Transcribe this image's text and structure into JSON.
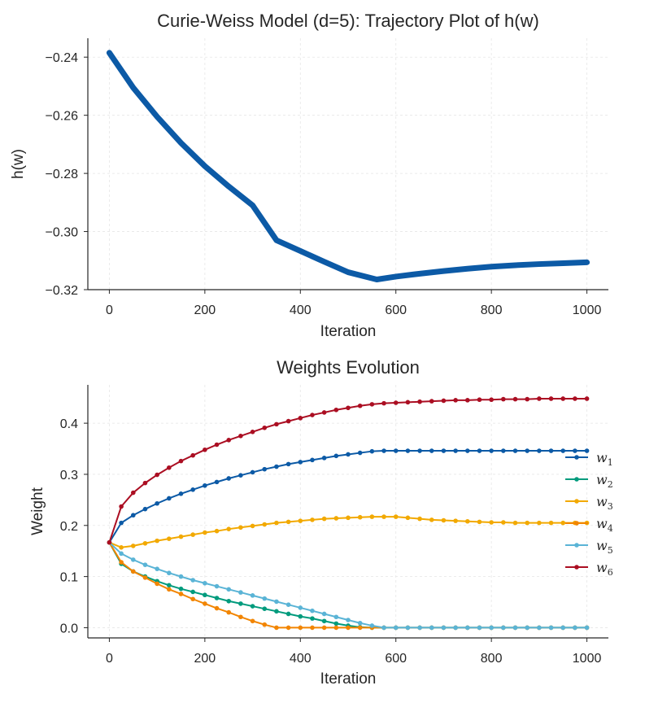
{
  "chart_data": [
    {
      "type": "line",
      "title": "Curie-Weiss Model (d=5): Trajectory Plot of h(w)",
      "xlabel": "Iteration",
      "ylabel": "h(w)",
      "xlim": [
        -45,
        1045
      ],
      "ylim": [
        -0.32,
        -0.2335
      ],
      "xticks": [
        0,
        200,
        400,
        600,
        800,
        1000
      ],
      "yticks": [
        -0.24,
        -0.26,
        -0.28,
        -0.3,
        -0.32
      ],
      "ytick_labels": [
        "−0.24",
        "−0.26",
        "−0.28",
        "−0.30",
        "−0.32"
      ],
      "grid": true,
      "series": [
        {
          "name": "h(w)",
          "color": "#0c5aa6",
          "x": [
            0,
            50,
            100,
            150,
            200,
            250,
            300,
            350,
            400,
            450,
            500,
            560,
            600,
            650,
            700,
            750,
            800,
            850,
            900,
            950,
            1000
          ],
          "values": [
            -0.2385,
            -0.2505,
            -0.2605,
            -0.2695,
            -0.2775,
            -0.2845,
            -0.291,
            -0.303,
            -0.3067,
            -0.3104,
            -0.314,
            -0.3165,
            -0.3155,
            -0.3145,
            -0.3136,
            -0.3128,
            -0.3121,
            -0.3116,
            -0.3112,
            -0.3109,
            -0.3106
          ]
        }
      ]
    },
    {
      "type": "line",
      "title": "Weights Evolution",
      "xlabel": "Iteration",
      "ylabel": "Weight",
      "xlim": [
        -45,
        1045
      ],
      "ylim": [
        -0.02,
        0.475
      ],
      "xticks": [
        0,
        200,
        400,
        600,
        800,
        1000
      ],
      "yticks": [
        0.0,
        0.1,
        0.2,
        0.3,
        0.4
      ],
      "ytick_labels": [
        "0.0",
        "0.1",
        "0.2",
        "0.3",
        "0.4"
      ],
      "grid": true,
      "legend": "center-right",
      "x": [
        0,
        25,
        50,
        75,
        100,
        125,
        150,
        175,
        200,
        225,
        250,
        275,
        300,
        325,
        350,
        375,
        400,
        425,
        450,
        475,
        500,
        525,
        550,
        575,
        600,
        625,
        650,
        675,
        700,
        725,
        750,
        775,
        800,
        825,
        850,
        875,
        900,
        925,
        950,
        975,
        1000
      ],
      "series": [
        {
          "name": "w",
          "sub": "1",
          "color": "#0c5aa6",
          "values": [
            0.1667,
            0.205,
            0.22,
            0.232,
            0.243,
            0.253,
            0.262,
            0.27,
            0.278,
            0.285,
            0.292,
            0.298,
            0.304,
            0.31,
            0.315,
            0.32,
            0.324,
            0.328,
            0.332,
            0.336,
            0.339,
            0.342,
            0.345,
            0.346,
            0.346,
            0.346,
            0.346,
            0.346,
            0.346,
            0.346,
            0.346,
            0.346,
            0.346,
            0.346,
            0.346,
            0.346,
            0.346,
            0.346,
            0.346,
            0.346,
            0.346
          ]
        },
        {
          "name": "w",
          "sub": "2",
          "color": "#009b7d",
          "values": [
            0.1667,
            0.125,
            0.11,
            0.1,
            0.091,
            0.083,
            0.076,
            0.07,
            0.064,
            0.058,
            0.052,
            0.047,
            0.042,
            0.037,
            0.032,
            0.027,
            0.022,
            0.018,
            0.013,
            0.008,
            0.004,
            0.001,
            0.0,
            0.0,
            0.0,
            0.0,
            0.0,
            0.0,
            0.0,
            0.0,
            0.0,
            0.0,
            0.0,
            0.0,
            0.0,
            0.0,
            0.0,
            0.0,
            0.0,
            0.0,
            0.0
          ]
        },
        {
          "name": "w",
          "sub": "3",
          "color": "#f2a900",
          "values": [
            0.1667,
            0.157,
            0.16,
            0.165,
            0.17,
            0.174,
            0.178,
            0.182,
            0.186,
            0.189,
            0.193,
            0.196,
            0.199,
            0.202,
            0.205,
            0.207,
            0.209,
            0.211,
            0.213,
            0.214,
            0.215,
            0.216,
            0.217,
            0.217,
            0.217,
            0.215,
            0.213,
            0.211,
            0.21,
            0.209,
            0.208,
            0.207,
            0.206,
            0.206,
            0.205,
            0.205,
            0.205,
            0.205,
            0.205,
            0.205,
            0.205
          ]
        },
        {
          "name": "w",
          "sub": "4",
          "color": "#f28500",
          "values": [
            0.1667,
            0.128,
            0.11,
            0.098,
            0.086,
            0.075,
            0.066,
            0.056,
            0.047,
            0.038,
            0.03,
            0.021,
            0.013,
            0.006,
            0.0,
            0.0,
            0.0,
            0.0,
            0.0,
            0.0,
            0.0,
            0.0,
            0.0,
            0.0,
            0.0,
            0.0,
            0.0,
            0.0,
            0.0,
            0.0,
            0.0,
            0.0,
            0.0,
            0.0,
            0.0,
            0.0,
            0.0,
            0.0,
            0.0,
            0.0,
            0.0
          ]
        },
        {
          "name": "w",
          "sub": "5",
          "color": "#5ab4d6",
          "values": [
            0.1667,
            0.145,
            0.133,
            0.123,
            0.115,
            0.107,
            0.1,
            0.093,
            0.087,
            0.081,
            0.075,
            0.069,
            0.063,
            0.057,
            0.051,
            0.045,
            0.039,
            0.033,
            0.027,
            0.021,
            0.015,
            0.009,
            0.004,
            0.0,
            0.0,
            0.0,
            0.0,
            0.0,
            0.0,
            0.0,
            0.0,
            0.0,
            0.0,
            0.0,
            0.0,
            0.0,
            0.0,
            0.0,
            0.0,
            0.0,
            0.0
          ]
        },
        {
          "name": "w",
          "sub": "6",
          "color": "#ab0e22",
          "values": [
            0.1667,
            0.237,
            0.264,
            0.283,
            0.299,
            0.313,
            0.326,
            0.337,
            0.348,
            0.358,
            0.367,
            0.375,
            0.383,
            0.391,
            0.398,
            0.404,
            0.41,
            0.416,
            0.421,
            0.426,
            0.43,
            0.434,
            0.437,
            0.439,
            0.44,
            0.441,
            0.442,
            0.443,
            0.444,
            0.445,
            0.445,
            0.446,
            0.446,
            0.447,
            0.447,
            0.447,
            0.448,
            0.448,
            0.448,
            0.448,
            0.448
          ]
        }
      ]
    }
  ]
}
